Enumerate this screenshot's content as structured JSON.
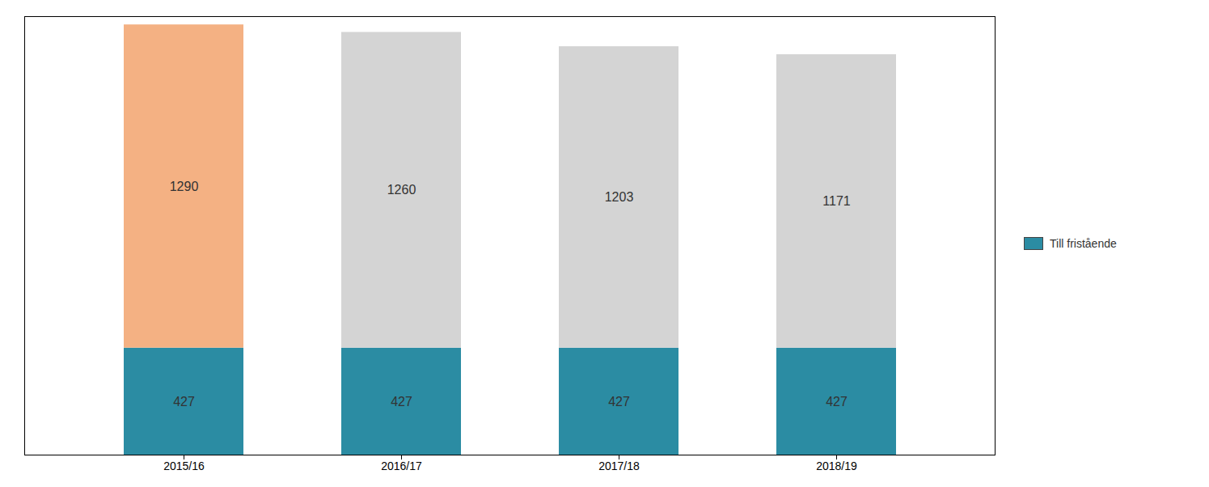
{
  "chart_data": {
    "type": "bar",
    "stacked": true,
    "categories": [
      "2015/16",
      "2016/17",
      "2017/18",
      "2018/19"
    ],
    "series": [
      {
        "name": "Till fristående",
        "color": "#2b8ca3",
        "values": [
          427,
          427,
          427,
          427
        ]
      },
      {
        "colors": [
          "#f4b183",
          "#d4d4d4",
          "#d4d4d4",
          "#d4d4d4"
        ],
        "values": [
          1290,
          1260,
          1203,
          1171
        ]
      }
    ],
    "ylim": [
      0,
      1750
    ],
    "grid": false,
    "legend": "right",
    "data_labels": true,
    "tick_labels": "x"
  }
}
